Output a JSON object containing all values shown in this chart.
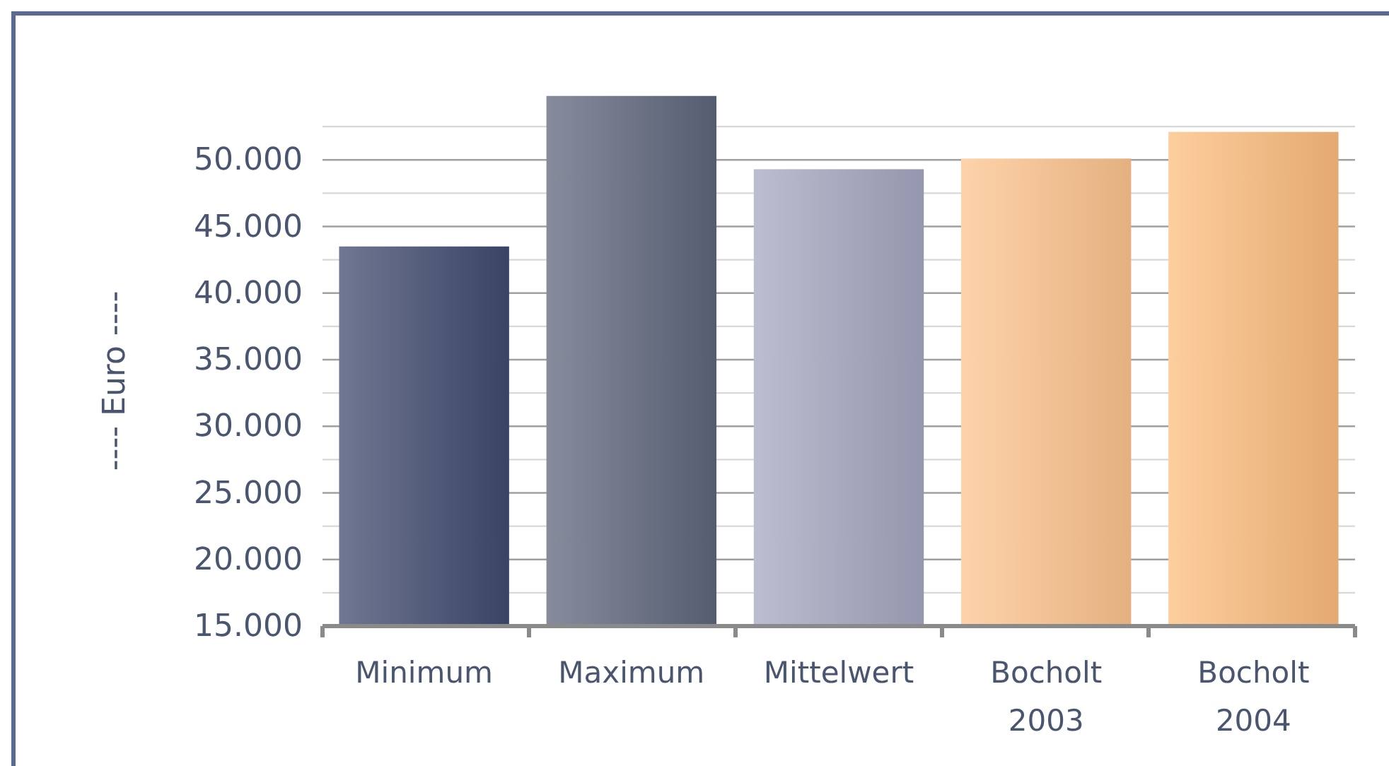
{
  "chart_data": {
    "type": "bar",
    "ylabel": "---- Euro ----",
    "categories": [
      "Minimum",
      "Maximum",
      "Mittelwert",
      "Bocholt 2003",
      "Bocholt 2004"
    ],
    "values": [
      43500,
      54800,
      49300,
      50100,
      52100
    ],
    "colors": [
      "#3f4a6e",
      "#5f667c",
      "#a4a8c0",
      "#fdc48e",
      "#fdbd7e"
    ],
    "ylim": [
      15000,
      55000
    ],
    "yticks": [
      {
        "value": 15000,
        "label": "15.000"
      },
      {
        "value": 17500,
        "label": null
      },
      {
        "value": 20000,
        "label": "20.000"
      },
      {
        "value": 22500,
        "label": null
      },
      {
        "value": 25000,
        "label": "25.000"
      },
      {
        "value": 27500,
        "label": null
      },
      {
        "value": 30000,
        "label": "30.000"
      },
      {
        "value": 32500,
        "label": null
      },
      {
        "value": 35000,
        "label": "35.000"
      },
      {
        "value": 37500,
        "label": null
      },
      {
        "value": 40000,
        "label": "40.000"
      },
      {
        "value": 42500,
        "label": null
      },
      {
        "value": 45000,
        "label": "45.000"
      },
      {
        "value": 47500,
        "label": null
      },
      {
        "value": 50000,
        "label": "50.000"
      },
      {
        "value": 52500,
        "label": null
      }
    ],
    "grid": true
  }
}
